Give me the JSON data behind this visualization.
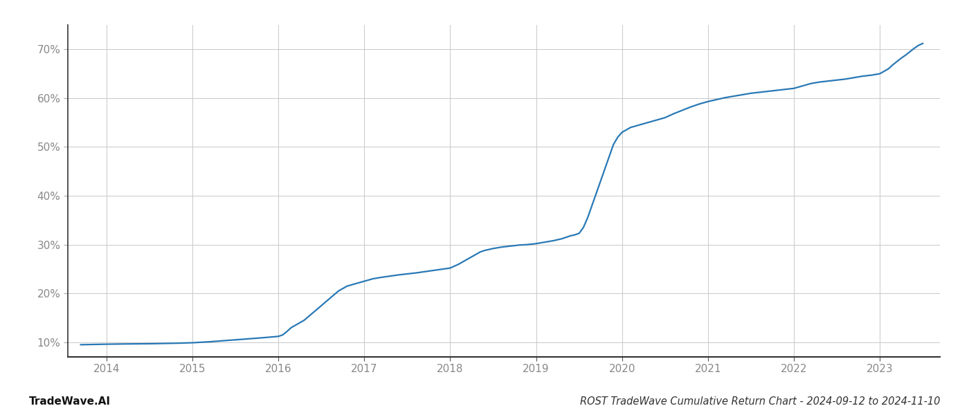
{
  "title": "ROST TradeWave Cumulative Return Chart - 2024-09-12 to 2024-11-10",
  "watermark": "TradeWave.AI",
  "line_color": "#2878b5",
  "background_color": "#ffffff",
  "grid_color": "#c8c8c8",
  "x_years": [
    2014,
    2015,
    2016,
    2017,
    2018,
    2019,
    2020,
    2021,
    2022,
    2023
  ],
  "data_points": [
    [
      2013.7,
      9.5
    ],
    [
      2014.0,
      9.6
    ],
    [
      2014.2,
      9.65
    ],
    [
      2014.5,
      9.7
    ],
    [
      2014.8,
      9.8
    ],
    [
      2015.0,
      9.9
    ],
    [
      2015.2,
      10.1
    ],
    [
      2015.5,
      10.5
    ],
    [
      2015.8,
      10.9
    ],
    [
      2016.0,
      11.2
    ],
    [
      2016.05,
      11.5
    ],
    [
      2016.1,
      12.2
    ],
    [
      2016.15,
      13.0
    ],
    [
      2016.2,
      13.5
    ],
    [
      2016.3,
      14.5
    ],
    [
      2016.4,
      16.0
    ],
    [
      2016.5,
      17.5
    ],
    [
      2016.6,
      19.0
    ],
    [
      2016.7,
      20.5
    ],
    [
      2016.8,
      21.5
    ],
    [
      2016.9,
      22.0
    ],
    [
      2017.0,
      22.5
    ],
    [
      2017.1,
      23.0
    ],
    [
      2017.2,
      23.3
    ],
    [
      2017.4,
      23.8
    ],
    [
      2017.6,
      24.2
    ],
    [
      2017.8,
      24.7
    ],
    [
      2018.0,
      25.2
    ],
    [
      2018.1,
      26.0
    ],
    [
      2018.2,
      27.0
    ],
    [
      2018.3,
      28.0
    ],
    [
      2018.35,
      28.5
    ],
    [
      2018.4,
      28.8
    ],
    [
      2018.5,
      29.2
    ],
    [
      2018.6,
      29.5
    ],
    [
      2018.7,
      29.7
    ],
    [
      2018.8,
      29.9
    ],
    [
      2018.9,
      30.0
    ],
    [
      2019.0,
      30.2
    ],
    [
      2019.1,
      30.5
    ],
    [
      2019.2,
      30.8
    ],
    [
      2019.3,
      31.2
    ],
    [
      2019.35,
      31.5
    ],
    [
      2019.4,
      31.8
    ],
    [
      2019.45,
      32.0
    ],
    [
      2019.5,
      32.3
    ],
    [
      2019.55,
      33.5
    ],
    [
      2019.6,
      35.5
    ],
    [
      2019.65,
      38.0
    ],
    [
      2019.7,
      40.5
    ],
    [
      2019.75,
      43.0
    ],
    [
      2019.8,
      45.5
    ],
    [
      2019.85,
      48.0
    ],
    [
      2019.9,
      50.5
    ],
    [
      2019.95,
      52.0
    ],
    [
      2020.0,
      53.0
    ],
    [
      2020.05,
      53.5
    ],
    [
      2020.1,
      54.0
    ],
    [
      2020.2,
      54.5
    ],
    [
      2020.3,
      55.0
    ],
    [
      2020.4,
      55.5
    ],
    [
      2020.5,
      56.0
    ],
    [
      2020.6,
      56.8
    ],
    [
      2020.7,
      57.5
    ],
    [
      2020.8,
      58.2
    ],
    [
      2020.9,
      58.8
    ],
    [
      2021.0,
      59.3
    ],
    [
      2021.1,
      59.7
    ],
    [
      2021.2,
      60.1
    ],
    [
      2021.3,
      60.4
    ],
    [
      2021.4,
      60.7
    ],
    [
      2021.5,
      61.0
    ],
    [
      2021.6,
      61.2
    ],
    [
      2021.7,
      61.4
    ],
    [
      2021.8,
      61.6
    ],
    [
      2021.9,
      61.8
    ],
    [
      2022.0,
      62.0
    ],
    [
      2022.1,
      62.5
    ],
    [
      2022.2,
      63.0
    ],
    [
      2022.3,
      63.3
    ],
    [
      2022.4,
      63.5
    ],
    [
      2022.5,
      63.7
    ],
    [
      2022.6,
      63.9
    ],
    [
      2022.7,
      64.2
    ],
    [
      2022.8,
      64.5
    ],
    [
      2022.9,
      64.7
    ],
    [
      2023.0,
      65.0
    ],
    [
      2023.1,
      66.0
    ],
    [
      2023.15,
      66.8
    ],
    [
      2023.2,
      67.5
    ],
    [
      2023.25,
      68.2
    ],
    [
      2023.3,
      68.8
    ],
    [
      2023.35,
      69.5
    ],
    [
      2023.4,
      70.2
    ],
    [
      2023.45,
      70.8
    ],
    [
      2023.5,
      71.2
    ]
  ],
  "yticks": [
    10,
    20,
    30,
    40,
    50,
    60,
    70
  ],
  "ylim": [
    7,
    75
  ],
  "xlim": [
    2013.55,
    2023.7
  ],
  "title_fontsize": 10.5,
  "watermark_fontsize": 11,
  "tick_fontsize": 11,
  "tick_color": "#888888",
  "line_width": 1.6
}
